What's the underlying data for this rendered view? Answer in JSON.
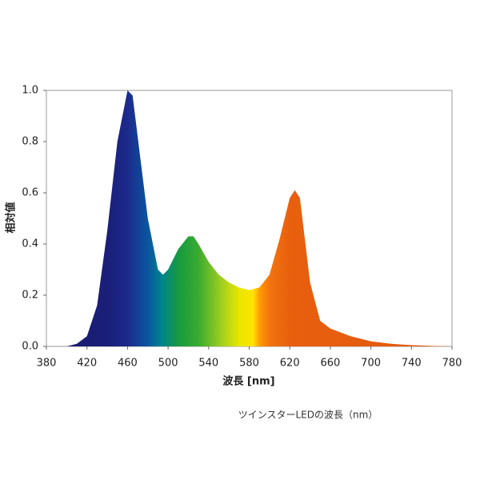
{
  "chart_data": {
    "type": "area",
    "xlabel": "波長 [nm]",
    "ylabel": "相対値",
    "caption": "ツインスターLEDの波長（nm）",
    "x": [
      380,
      400,
      410,
      420,
      430,
      440,
      450,
      460,
      465,
      470,
      480,
      490,
      495,
      500,
      510,
      520,
      525,
      530,
      540,
      550,
      560,
      570,
      580,
      590,
      600,
      610,
      620,
      625,
      630,
      640,
      650,
      660,
      680,
      700,
      720,
      740,
      760,
      780
    ],
    "values": [
      0.0,
      0.0,
      0.01,
      0.04,
      0.16,
      0.45,
      0.8,
      1.0,
      0.98,
      0.82,
      0.5,
      0.3,
      0.28,
      0.3,
      0.38,
      0.43,
      0.43,
      0.4,
      0.33,
      0.28,
      0.25,
      0.23,
      0.22,
      0.23,
      0.28,
      0.42,
      0.58,
      0.61,
      0.58,
      0.25,
      0.1,
      0.07,
      0.04,
      0.02,
      0.01,
      0.005,
      0.002,
      0.0
    ],
    "xlim": [
      380,
      780
    ],
    "xticks": [
      380,
      420,
      460,
      500,
      540,
      580,
      620,
      660,
      700,
      740,
      780
    ],
    "ylim": [
      0,
      1
    ],
    "yticks": [
      {
        "value": 0,
        "label": "0.0"
      },
      {
        "value": 0.2,
        "label": "0.2"
      },
      {
        "value": 0.4,
        "label": "0.4"
      },
      {
        "value": 0.6,
        "label": "0.6"
      },
      {
        "value": 0.8,
        "label": "0.8"
      },
      {
        "value": 1,
        "label": "1.0"
      }
    ],
    "grid": false
  }
}
